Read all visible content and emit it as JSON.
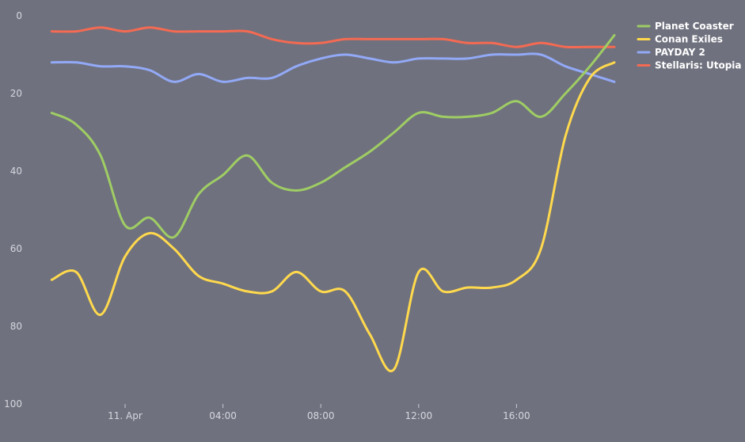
{
  "chart_data": {
    "type": "line",
    "title": "",
    "xlabel": "",
    "ylabel": "",
    "y_inverted": true,
    "ylim": [
      0,
      100
    ],
    "y_ticks": [
      "0",
      "20",
      "40",
      "60",
      "80",
      "100"
    ],
    "x_ticks": [
      "11. Apr",
      "04:00",
      "08:00",
      "12:00",
      "16:00"
    ],
    "x_tick_hours": [
      0,
      4,
      8,
      12,
      16
    ],
    "legend_position": "top-right",
    "grid": false,
    "x_hours": [
      -3,
      -2,
      -1,
      0,
      1,
      2,
      3,
      4,
      5,
      6,
      7,
      8,
      9,
      10,
      11,
      12,
      13,
      14,
      15,
      16,
      17,
      18,
      19,
      20
    ],
    "series": [
      {
        "name": "Planet Coaster",
        "color": "#9fcd64",
        "values": [
          25,
          28,
          36,
          54,
          52,
          57,
          46,
          41,
          36,
          43,
          45,
          43,
          39,
          35,
          30,
          25,
          26,
          26,
          25,
          22,
          26,
          20,
          13,
          5
        ]
      },
      {
        "name": "Conan Exiles",
        "color": "#ffd94d",
        "values": [
          68,
          66,
          77,
          62,
          56,
          60,
          67,
          69,
          71,
          71,
          66,
          71,
          71,
          82,
          91,
          66,
          71,
          70,
          70,
          68,
          60,
          31,
          16,
          12
        ]
      },
      {
        "name": "PAYDAY 2",
        "color": "#92a9f7",
        "values": [
          12,
          12,
          13,
          13,
          14,
          17,
          15,
          17,
          16,
          16,
          13,
          11,
          10,
          11,
          12,
          11,
          11,
          11,
          10,
          10,
          10,
          13,
          15,
          17
        ]
      },
      {
        "name": "Stellaris: Utopia",
        "color": "#f46a52",
        "values": [
          4,
          4,
          3,
          4,
          3,
          4,
          4,
          4,
          4,
          6,
          7,
          7,
          6,
          6,
          6,
          6,
          6,
          7,
          7,
          8,
          7,
          8,
          8,
          8
        ]
      }
    ]
  }
}
